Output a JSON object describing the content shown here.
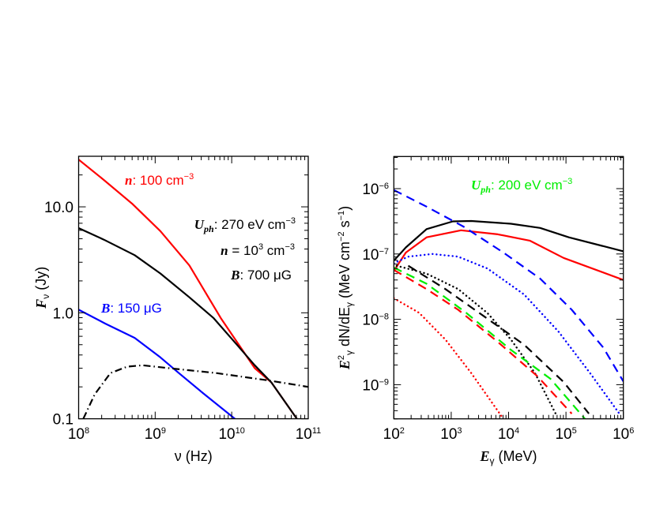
{
  "chart_data": [
    {
      "type": "line",
      "xscale": "log",
      "yscale": "log",
      "xlim": [
        100000000.0,
        100000000000.0
      ],
      "ylim": [
        0.1,
        30
      ],
      "xlabel": [
        {
          "t": "ν (Hz)",
          "s": "n"
        }
      ],
      "ylabel": [
        {
          "t": "F",
          "s": "bi"
        },
        {
          "t": "ν",
          "s": "sub"
        },
        {
          "t": " (Jy)",
          "s": "n"
        }
      ],
      "xticks": [
        {
          "v": 100000000.0,
          "base": "10",
          "exp": "8"
        },
        {
          "v": 1000000000.0,
          "base": "10",
          "exp": "9"
        },
        {
          "v": 10000000000.0,
          "base": "10",
          "exp": "10"
        },
        {
          "v": 100000000000.0,
          "base": "10",
          "exp": "11"
        }
      ],
      "yticks": [
        {
          "v": 0.1,
          "base": "0.1",
          "exp": ""
        },
        {
          "v": 1,
          "base": "1.0",
          "exp": ""
        },
        {
          "v": 10,
          "base": "10.0",
          "exp": ""
        }
      ],
      "series": [
        {
          "color": "#ff0000",
          "style": "solid",
          "x": [
            100000000.0,
            214000000.0,
            500000000.0,
            1170000000.0,
            2800000000.0,
            7200000000.0,
            20000000000.0,
            33000000000.0,
            71000000000.0
          ],
          "y": [
            27.9,
            17.9,
            10.7,
            5.9,
            2.8,
            0.89,
            0.3,
            0.22,
            0.1
          ]
        },
        {
          "color": "#000000",
          "style": "solid",
          "x": [
            100000000.0,
            214000000.0,
            540000000.0,
            1170000000.0,
            2800000000.0,
            5800000000.0,
            11700000000.0,
            20000000000.0,
            33000000000.0,
            71000000000.0
          ],
          "y": [
            6.3,
            4.9,
            3.5,
            2.35,
            1.4,
            0.89,
            0.5,
            0.32,
            0.22,
            0.1
          ]
        },
        {
          "color": "#0000ff",
          "style": "solid",
          "x": [
            100000000.0,
            224000000.0,
            540000000.0,
            1170000000.0,
            2040000000.0,
            4200000000.0,
            11000000000.0
          ],
          "y": [
            1.07,
            0.79,
            0.58,
            0.38,
            0.27,
            0.175,
            0.1
          ]
        },
        {
          "color": "#000000",
          "style": "dashdot",
          "x": [
            115000000.0,
            162000000.0,
            260000000.0,
            430000000.0,
            680000000.0,
            1900000000.0,
            6300000000.0,
            30000000000.0,
            100000000000.0
          ],
          "y": [
            0.1,
            0.17,
            0.27,
            0.31,
            0.32,
            0.295,
            0.27,
            0.23,
            0.2
          ]
        }
      ],
      "annotations": [
        [
          {
            "t": "n",
            "s": "bi",
            "c": "#ff0000"
          },
          {
            "t": ": 100 cm",
            "s": "n",
            "c": "#ff0000"
          },
          {
            "t": "−3",
            "s": "sup",
            "c": "#ff0000"
          }
        ],
        [
          {
            "t": "U",
            "s": "bi",
            "c": "#000000"
          },
          {
            "t": "ph",
            "s": "bisub",
            "c": "#000000"
          },
          {
            "t": ": 270 eV cm",
            "s": "n",
            "c": "#000000"
          },
          {
            "t": "−3",
            "s": "sup",
            "c": "#000000"
          }
        ],
        [
          {
            "t": "n",
            "s": "bi",
            "c": "#000000"
          },
          {
            "t": " = 10",
            "s": "n",
            "c": "#000000"
          },
          {
            "t": "3",
            "s": "sup",
            "c": "#000000"
          },
          {
            "t": " cm",
            "s": "n",
            "c": "#000000"
          },
          {
            "t": "−3",
            "s": "sup",
            "c": "#000000"
          }
        ],
        [
          {
            "t": "B",
            "s": "bi",
            "c": "#000000"
          },
          {
            "t": ": 700 μG",
            "s": "n",
            "c": "#000000"
          }
        ],
        [
          {
            "t": "B",
            "s": "bi",
            "c": "#0000ff"
          },
          {
            "t": ": 150 μG",
            "s": "n",
            "c": "#0000ff"
          }
        ]
      ]
    },
    {
      "type": "line",
      "xscale": "log",
      "yscale": "log",
      "xlim": [
        100.0,
        1000000.0
      ],
      "ylim": [
        3e-10,
        3.1e-06
      ],
      "xlabel": [
        {
          "t": "E",
          "s": "bi"
        },
        {
          "t": "γ",
          "s": "sub"
        },
        {
          "t": " (MeV)",
          "s": "n"
        }
      ],
      "ylabel": [
        {
          "t": "E",
          "s": "bi"
        },
        {
          "t": "2",
          "s": "sup"
        },
        {
          "t": "γ",
          "s": "sub"
        },
        {
          "t": " dN/dE",
          "s": "n"
        },
        {
          "t": "γ",
          "s": "sub"
        },
        {
          "t": " (MeV cm",
          "s": "n"
        },
        {
          "t": "−2",
          "s": "sup"
        },
        {
          "t": " s",
          "s": "n"
        },
        {
          "t": "−1",
          "s": "sup"
        },
        {
          "t": ")",
          "s": "n"
        }
      ],
      "xticks": [
        {
          "v": 100.0,
          "base": "10",
          "exp": "2"
        },
        {
          "v": 1000.0,
          "base": "10",
          "exp": "3"
        },
        {
          "v": 10000.0,
          "base": "10",
          "exp": "4"
        },
        {
          "v": 100000.0,
          "base": "10",
          "exp": "5"
        },
        {
          "v": 1000000.0,
          "base": "10",
          "exp": "6"
        }
      ],
      "yticks": [
        {
          "v": 1e-09,
          "base": "10",
          "exp": "−9"
        },
        {
          "v": 1e-08,
          "base": "10",
          "exp": "−8"
        },
        {
          "v": 1e-07,
          "base": "10",
          "exp": "−7"
        },
        {
          "v": 1e-06,
          "base": "10",
          "exp": "−6"
        }
      ],
      "series": [
        {
          "color": "#000000",
          "style": "solid",
          "x": [
            100,
            162,
            372,
            1070,
            2240,
            11000,
            35500,
            112000,
            1000000.0
          ],
          "y": [
            7.9e-08,
            1.26e-07,
            2.4e-07,
            3.15e-07,
            3.2e-07,
            2.9e-07,
            2.5e-07,
            1.8e-07,
            1.1e-07
          ]
        },
        {
          "color": "#ff0000",
          "style": "solid",
          "x": [
            100,
            162,
            372,
            1480,
            6500,
            23400,
            91000,
            1000000.0
          ],
          "y": [
            5.5e-08,
            1.05e-07,
            1.8e-07,
            2.3e-07,
            2e-07,
            1.6e-07,
            8.7e-08,
            4e-08
          ]
        },
        {
          "color": "#0000ff",
          "style": "dashed",
          "x": [
            100,
            372,
            1660,
            8100,
            35500,
            126000,
            447000,
            1000000.0
          ],
          "y": [
            9.5e-07,
            5.3e-07,
            2.6e-07,
            1.05e-07,
            4.2e-08,
            1.4e-08,
            3.7e-09,
            1.12e-09
          ]
        },
        {
          "color": "#0000ff",
          "style": "dotted",
          "x": [
            100,
            178,
            468,
            1320,
            4270,
            18600,
            74000,
            263000,
            850000
          ],
          "y": [
            7.2e-08,
            9.1e-08,
            1e-07,
            9.1e-08,
            6e-08,
            2.4e-08,
            6.5e-09,
            1.5e-09,
            3.6e-10
          ]
        },
        {
          "color": "#000000",
          "style": "dotted",
          "x": [
            112,
            372,
            1320,
            4270,
            11000,
            28800,
            66000
          ],
          "y": [
            6.6e-08,
            5e-08,
            2.9e-08,
            1.25e-08,
            4.9e-09,
            1.5e-09,
            3.6e-10
          ]
        },
        {
          "color": "#000000",
          "style": "dashed",
          "x": [
            178,
            794,
            3800,
            18600,
            91000,
            251000
          ],
          "y": [
            6.6e-08,
            2.9e-08,
            1.1e-08,
            4.1e-09,
            1.1e-09,
            3.6e-10
          ]
        },
        {
          "color": "#00ee00",
          "style": "dashed",
          "x": [
            100,
            372,
            1820,
            11000,
            53700,
            214000
          ],
          "y": [
            6.2e-08,
            3.5e-08,
            1.26e-08,
            3.4e-09,
            1.23e-09,
            3e-10
          ]
        },
        {
          "color": "#ff0000",
          "style": "dashed",
          "x": [
            100,
            372,
            1320,
            6500,
            31600,
            126000
          ],
          "y": [
            5.7e-08,
            2.9e-08,
            1.4e-08,
            4.5e-09,
            1.35e-09,
            3.6e-10
          ]
        },
        {
          "color": "#ff0000",
          "style": "dotted",
          "x": [
            100,
            275,
            794,
            2240,
            8100
          ],
          "y": [
            2.1e-08,
            1.26e-08,
            4.9e-09,
            1.5e-09,
            3e-10
          ]
        }
      ],
      "annotations": [
        [
          {
            "t": "U",
            "s": "bi",
            "c": "#00ee00"
          },
          {
            "t": "ph",
            "s": "bisub",
            "c": "#00ee00"
          },
          {
            "t": ": 200 eV cm",
            "s": "n",
            "c": "#00ee00"
          },
          {
            "t": "−3",
            "s": "sup",
            "c": "#00ee00"
          }
        ]
      ]
    }
  ]
}
